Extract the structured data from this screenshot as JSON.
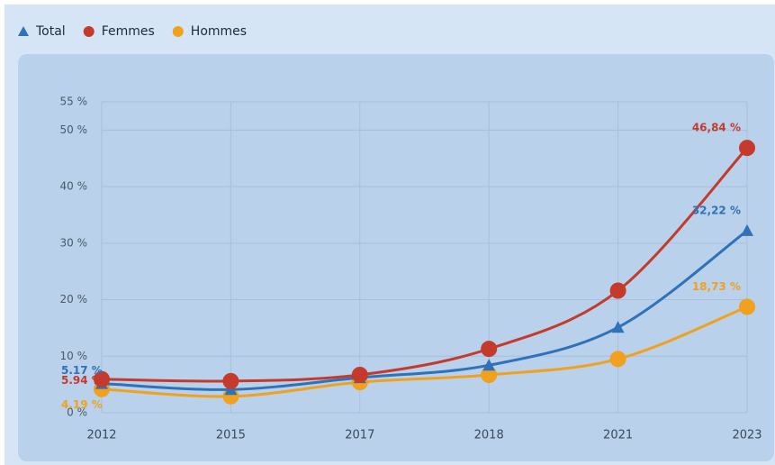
{
  "chart_data": {
    "type": "line",
    "categories": [
      "2012",
      "2015",
      "2017",
      "2018",
      "2021",
      "2023"
    ],
    "series": [
      {
        "name": "Total",
        "color": "#2f72b8",
        "marker": "triangle",
        "values": [
          5.17,
          4.1,
          6.2,
          8.4,
          15.1,
          32.22
        ],
        "value_labels": [
          "5.17 %",
          null,
          null,
          null,
          null,
          "32,22 %"
        ]
      },
      {
        "name": "Femmes",
        "color": "#c43a2c",
        "marker": "circle",
        "values": [
          5.94,
          5.6,
          6.7,
          11.3,
          21.6,
          46.84
        ],
        "value_labels": [
          "5.94 %",
          null,
          null,
          null,
          null,
          "46,84 %"
        ]
      },
      {
        "name": "Hommes",
        "color": "#efa11f",
        "marker": "circle",
        "values": [
          4.19,
          2.9,
          5.4,
          6.7,
          9.5,
          18.73
        ],
        "value_labels": [
          "4.19 %",
          null,
          null,
          null,
          null,
          "18,73 %"
        ]
      }
    ],
    "ylim": [
      0,
      55
    ],
    "yticks": [
      {
        "value": 0,
        "label": "0 %"
      },
      {
        "value": 10,
        "label": "10 %"
      },
      {
        "value": 20,
        "label": "20 %"
      },
      {
        "value": 30,
        "label": "30 %"
      },
      {
        "value": 40,
        "label": "40 %"
      },
      {
        "value": 50,
        "label": "50 %"
      },
      {
        "value": 55,
        "label": "55 %"
      }
    ],
    "grid": true,
    "legend": "top-left"
  }
}
